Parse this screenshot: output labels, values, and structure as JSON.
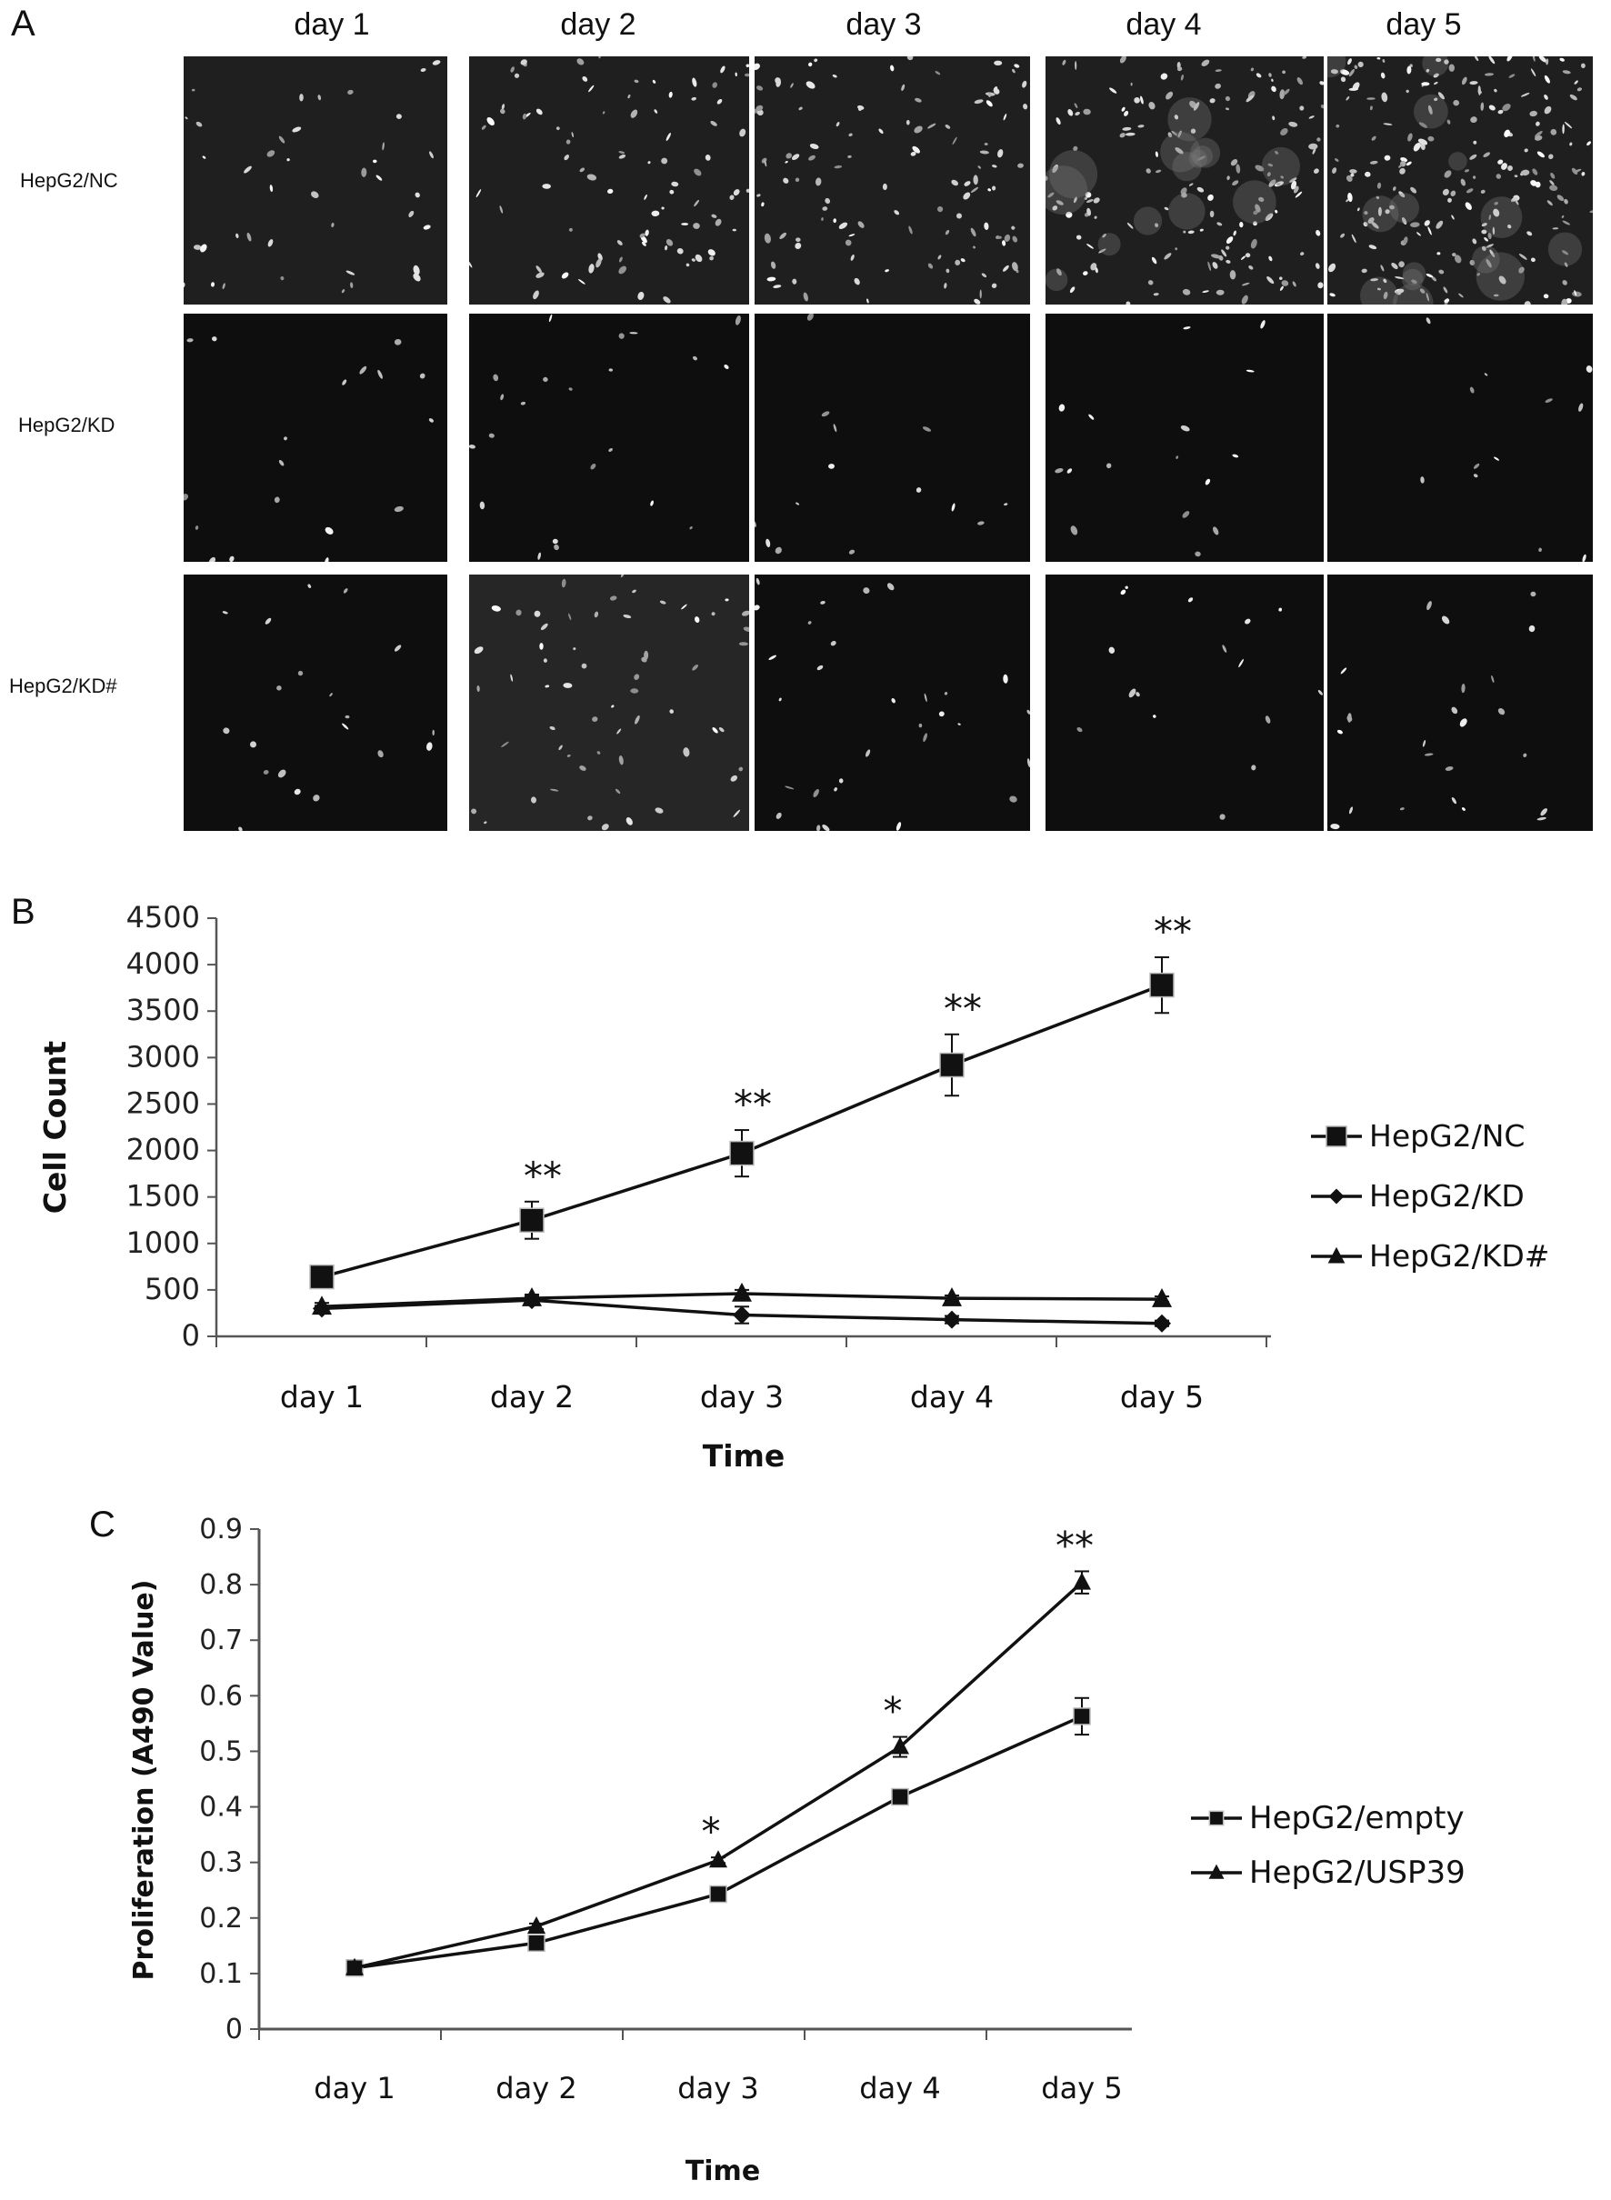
{
  "panel_a": {
    "letter": "A",
    "days": [
      "day 1",
      "day 2",
      "day 3",
      "day 4",
      "day 5"
    ],
    "rows": [
      {
        "label": "HepG2/NC",
        "density": [
          40,
          90,
          120,
          160,
          220
        ]
      },
      {
        "label": "HepG2/KD",
        "density": [
          18,
          22,
          14,
          16,
          12
        ]
      },
      {
        "label": "HepG2/KD#",
        "density": [
          20,
          60,
          30,
          16,
          24
        ]
      }
    ]
  },
  "chart_data": [
    {
      "panel_letter": "B",
      "type": "line",
      "xlabel": "Time",
      "ylabel": "Cell Count",
      "categories": [
        "day 1",
        "day 2",
        "day 3",
        "day 4",
        "day 5"
      ],
      "ylim": [
        0,
        4500
      ],
      "yticks": [
        0,
        500,
        1000,
        1500,
        2000,
        2500,
        3000,
        3500,
        4000,
        4500
      ],
      "series": [
        {
          "name": "HepG2/NC",
          "marker": "square",
          "values": [
            640,
            1250,
            1970,
            2920,
            3780
          ],
          "errors": [
            60,
            200,
            250,
            330,
            300
          ]
        },
        {
          "name": "HepG2/KD",
          "marker": "diamond",
          "values": [
            300,
            390,
            230,
            180,
            140
          ],
          "errors": [
            30,
            40,
            90,
            40,
            30
          ]
        },
        {
          "name": "HepG2/KD#",
          "marker": "triangle",
          "values": [
            320,
            410,
            460,
            410,
            400
          ],
          "errors": [
            40,
            40,
            40,
            30,
            30
          ]
        }
      ],
      "annotations": [
        "",
        "**",
        "**",
        "**",
        "**"
      ],
      "grid": false,
      "legend": "right"
    },
    {
      "panel_letter": "C",
      "type": "line",
      "xlabel": "Time",
      "ylabel": "Proliferation (A490 Value)",
      "categories": [
        "day 1",
        "day 2",
        "day 3",
        "day 4",
        "day 5"
      ],
      "ylim": [
        0,
        0.9
      ],
      "yticks": [
        "0",
        "0.1",
        "0.2",
        "0.3",
        "0.4",
        "0.5",
        "0.6",
        "0.7",
        "0.8",
        "0.9"
      ],
      "series": [
        {
          "name": "HepG2/empty",
          "marker": "square",
          "values": [
            0.11,
            0.155,
            0.243,
            0.418,
            0.563
          ],
          "errors": [
            0.005,
            0.005,
            0.005,
            0.012,
            0.033
          ]
        },
        {
          "name": "HepG2/USP39",
          "marker": "triangle",
          "values": [
            0.11,
            0.185,
            0.304,
            0.508,
            0.804
          ],
          "errors": [
            0.005,
            0.005,
            0.005,
            0.018,
            0.02
          ]
        }
      ],
      "annotations": [
        "",
        "",
        "*",
        "*",
        "**"
      ],
      "grid": false,
      "legend": "right"
    }
  ]
}
